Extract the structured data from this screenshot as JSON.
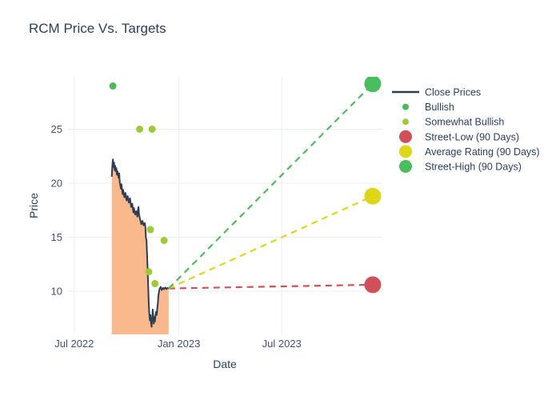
{
  "chart_data": {
    "type": "line",
    "title": "RCM Price Vs. Targets",
    "xlabel": "Date",
    "ylabel": "Price",
    "x_ticks": [
      {
        "label": "Jul 2022",
        "day": 0
      },
      {
        "label": "Jan 2023",
        "day": 184
      },
      {
        "label": "Jul 2023",
        "day": 365
      }
    ],
    "y_ticks": [
      10,
      15,
      20,
      25
    ],
    "x_range_days": [
      -11,
      542
    ],
    "y_range": [
      6.0,
      29.85
    ],
    "grid": true,
    "legend_position": "right",
    "colors": {
      "close_line": "#2d3e54",
      "close_fill": "#f9b98c",
      "bullish": "#47bd57",
      "somewhat_bullish": "#9ecb35",
      "street_low": "#d0505a",
      "average_rating": "#ddd619",
      "street_high": "#4abd5e",
      "grid": "#e8eef5",
      "text": "#2a3f5f",
      "tick_text": "#3f5178"
    },
    "close_prices": {
      "name": "Close Prices",
      "points": [
        [
          66,
          20.6
        ],
        [
          67,
          21.6
        ],
        [
          68,
          22.2
        ],
        [
          69,
          21.5
        ],
        [
          70,
          21.9
        ],
        [
          71,
          21.2
        ],
        [
          72,
          21.6
        ],
        [
          73,
          21.1
        ],
        [
          74,
          21.4
        ],
        [
          75,
          20.8
        ],
        [
          76,
          21.1
        ],
        [
          78,
          20.5
        ],
        [
          79,
          20.9
        ],
        [
          80,
          20.1
        ],
        [
          82,
          19.5
        ],
        [
          83,
          19.9
        ],
        [
          85,
          19.0
        ],
        [
          86,
          19.4
        ],
        [
          88,
          18.7
        ],
        [
          90,
          19.1
        ],
        [
          92,
          18.4
        ],
        [
          94,
          18.8
        ],
        [
          96,
          18.2
        ],
        [
          98,
          18.6
        ],
        [
          100,
          17.8
        ],
        [
          102,
          18.1
        ],
        [
          104,
          17.3
        ],
        [
          105,
          17.7
        ],
        [
          107,
          17.1
        ],
        [
          109,
          17.4
        ],
        [
          111,
          16.9
        ],
        [
          112,
          17.5
        ],
        [
          113,
          17.8
        ],
        [
          114,
          17.1
        ],
        [
          116,
          16.6
        ],
        [
          118,
          16.2
        ],
        [
          120,
          16.5
        ],
        [
          122,
          16.1
        ],
        [
          124,
          16.3
        ],
        [
          125,
          16.0
        ],
        [
          126,
          14.9
        ],
        [
          127,
          14.8
        ],
        [
          128,
          13.5
        ],
        [
          129,
          12.1
        ],
        [
          130,
          10.5
        ],
        [
          131,
          9.0
        ],
        [
          132,
          7.9
        ],
        [
          133,
          7.3
        ],
        [
          134,
          7.8
        ],
        [
          135,
          7.0
        ],
        [
          136,
          6.7
        ],
        [
          137,
          7.4
        ],
        [
          138,
          8.3
        ],
        [
          139,
          7.7
        ],
        [
          140,
          7.0
        ],
        [
          141,
          7.6
        ],
        [
          142,
          7.2
        ],
        [
          143,
          7.8
        ],
        [
          144,
          8.1
        ],
        [
          145,
          7.8
        ],
        [
          146,
          8.4
        ],
        [
          147,
          8.9
        ],
        [
          148,
          9.6
        ],
        [
          150,
          10.2
        ],
        [
          152,
          10.4
        ],
        [
          154,
          10.1
        ],
        [
          156,
          10.3
        ],
        [
          158,
          10.2
        ],
        [
          160,
          10.35
        ],
        [
          162,
          10.2
        ],
        [
          164,
          10.3
        ],
        [
          166,
          10.25
        ]
      ]
    },
    "ratings": {
      "bullish": {
        "name": "Bullish",
        "points": [
          [
            68,
            29
          ]
        ]
      },
      "somewhat_bullish": {
        "name": "Somewhat Bullish",
        "points": [
          [
            115,
            25
          ],
          [
            137,
            25
          ],
          [
            134,
            15.7
          ],
          [
            158,
            14.7
          ],
          [
            131,
            11.8
          ],
          [
            142,
            10.7
          ]
        ]
      }
    },
    "targets": {
      "projection_start": [
        166,
        10.25
      ],
      "target_day": 525,
      "street_low": {
        "label": "Street-Low (90 Days)",
        "value": 10.6
      },
      "average": {
        "label": "Average Rating (90 Days)",
        "value": 18.8
      },
      "street_high": {
        "label": "Street-High (90 Days)",
        "value": 29.2
      }
    },
    "legend": [
      {
        "id": "close-prices",
        "swatch": "line",
        "color_key": "close_line",
        "label": "Close Prices"
      },
      {
        "id": "bullish",
        "swatch": "dot-small",
        "color_key": "bullish",
        "label": "Bullish"
      },
      {
        "id": "somewhat-bullish",
        "swatch": "dot-small",
        "color_key": "somewhat_bullish",
        "label": "Somewhat Bullish"
      },
      {
        "id": "street-low",
        "swatch": "dot-big",
        "color_key": "street_low",
        "label": "Street-Low (90 Days)"
      },
      {
        "id": "average-rating",
        "swatch": "dot-big",
        "color_key": "average_rating",
        "label": "Average Rating (90 Days)"
      },
      {
        "id": "street-high",
        "swatch": "dot-big",
        "color_key": "street_high",
        "label": "Street-High (90 Days)"
      }
    ]
  }
}
